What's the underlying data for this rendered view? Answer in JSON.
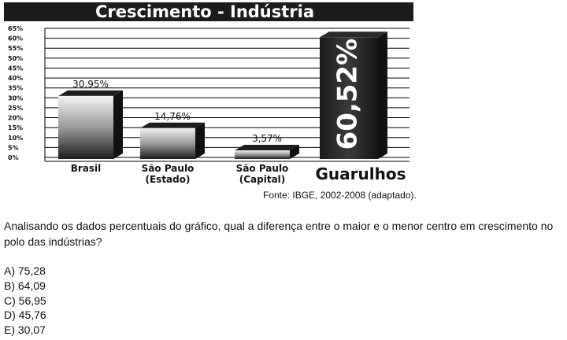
{
  "chart_data": {
    "type": "bar",
    "title": "Crescimento - Indústria",
    "categories": [
      [
        "Brasil"
      ],
      [
        "São Paulo",
        "(Estado)"
      ],
      [
        "São Paulo",
        "(Capital)"
      ],
      [
        "Guarulhos"
      ]
    ],
    "values": [
      30.95,
      14.76,
      3.57,
      60.52
    ],
    "data_labels": [
      "30,95%",
      "14,76%",
      "3,57%",
      "60,52%"
    ],
    "y_ticks": [
      "0%",
      "5%",
      "10%",
      "15%",
      "20%",
      "25%",
      "30%",
      "35%",
      "40%",
      "45%",
      "50%",
      "55%",
      "60%",
      "65%"
    ],
    "ylim": [
      0,
      65
    ],
    "grid": true,
    "xlabel": "",
    "ylabel": ""
  },
  "source": "Fonte: IBGE, 2002-2008 (adaptado).",
  "question": "Analisando os dados percentuais do gráfico, qual a diferença entre o maior e o menor centro em crescimento no polo das indústrias?",
  "options": [
    "A) 75,28",
    "B) 64,09",
    "C) 56,95",
    "D) 45,76",
    "E) 30,07"
  ]
}
